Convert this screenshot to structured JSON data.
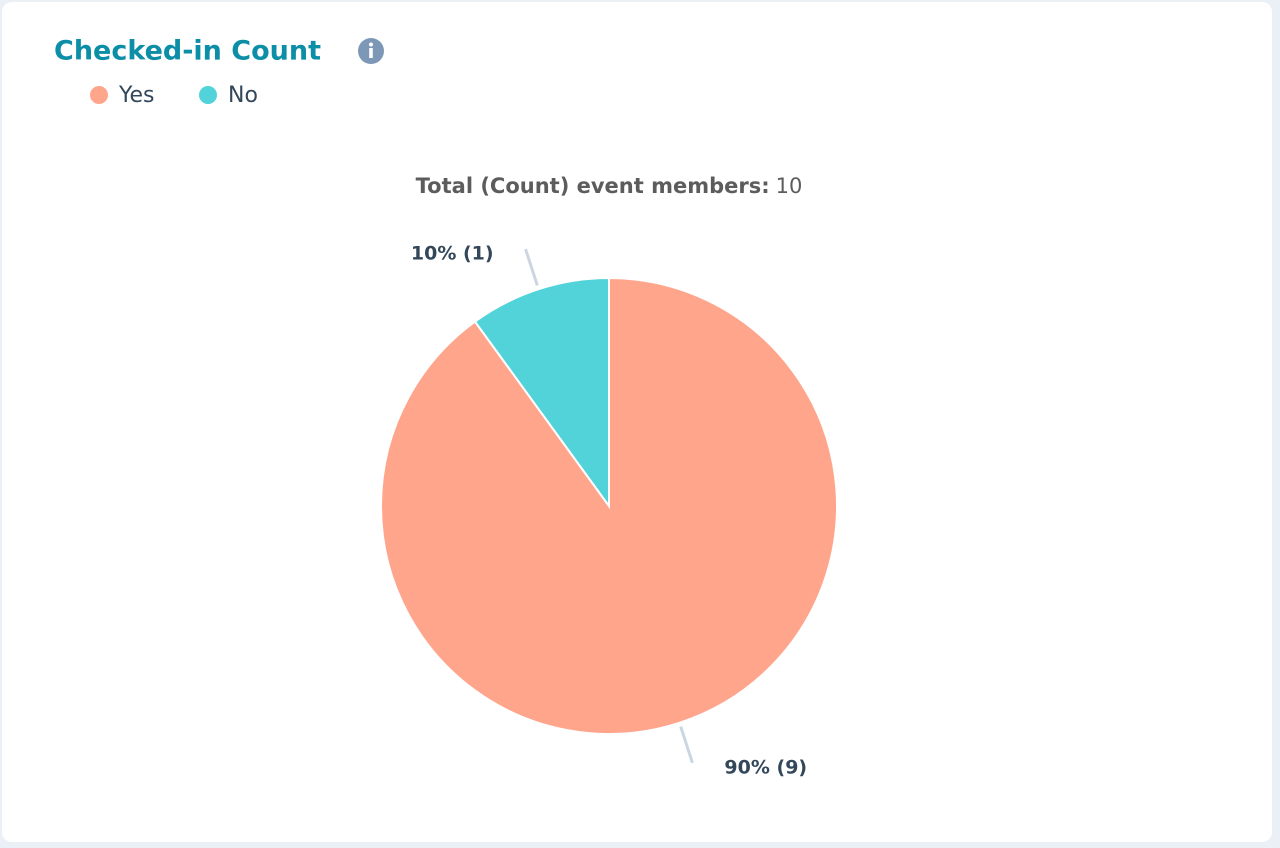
{
  "chart_data": {
    "type": "pie",
    "title": "Checked-in Count",
    "subtitle": "Total (Count) event members:",
    "total": 10,
    "categories": [
      "Yes",
      "No"
    ],
    "values": [
      9,
      1
    ],
    "value_labels": [
      "90% (9)",
      "10% (1)"
    ],
    "colors": [
      "#ffa58c",
      "#51d3d9"
    ]
  }
}
